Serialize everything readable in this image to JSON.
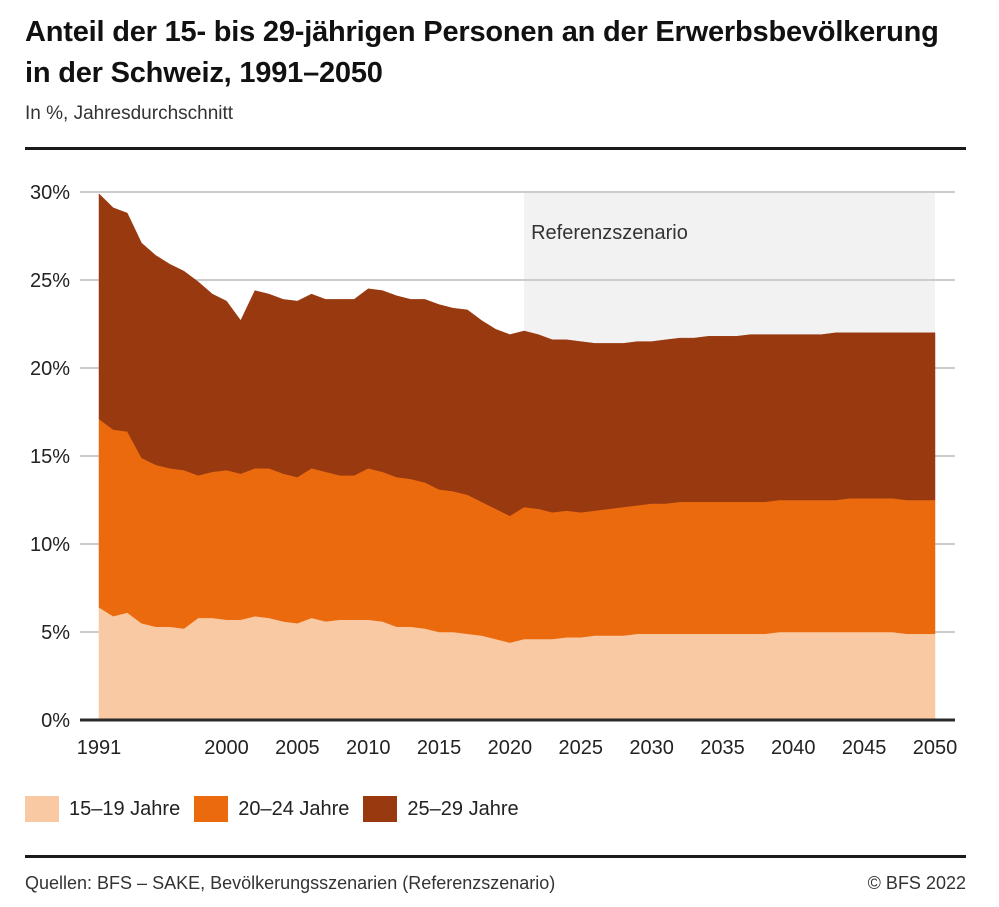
{
  "header": {
    "title": "Anteil der 15- bis 29-jährigen Personen an der Erwerbsbevölkerung in der Schweiz, 1991–2050",
    "subtitle": "In %, Jahresdurchschnitt"
  },
  "footer": {
    "source": "Quellen: BFS – SAKE, Bevölkerungsszenarien (Referenzszenario)",
    "copyright": "© BFS 2022"
  },
  "chart_data": {
    "type": "area",
    "stacked": true,
    "title": "Anteil der 15- bis 29-jährigen Personen an der Erwerbsbevölkerung in der Schweiz, 1991–2050",
    "subtitle": "In %, Jahresdurchschnitt",
    "xlabel": "",
    "ylabel": "",
    "ylim": [
      0,
      30
    ],
    "xlim": [
      1991,
      2050
    ],
    "grid": true,
    "legend_position": "bottom-left",
    "y_ticks": [
      0,
      5,
      10,
      15,
      20,
      25,
      30
    ],
    "y_tick_labels": [
      "0%",
      "5%",
      "10%",
      "15%",
      "20%",
      "25%",
      "30%"
    ],
    "x_ticks": [
      1991,
      2000,
      2005,
      2010,
      2015,
      2020,
      2025,
      2030,
      2035,
      2040,
      2045,
      2050
    ],
    "x_tick_labels": [
      "1991",
      "2000",
      "2005",
      "2010",
      "2015",
      "2020",
      "2025",
      "2030",
      "2035",
      "2040",
      "2045",
      "2050"
    ],
    "annotation": {
      "label": "Referenzszenario",
      "x_start": 2021,
      "x_end": 2050,
      "color": "#f2f2f2"
    },
    "x": [
      1991,
      1992,
      1993,
      1994,
      1995,
      1996,
      1997,
      1998,
      1999,
      2000,
      2001,
      2002,
      2003,
      2004,
      2005,
      2006,
      2007,
      2008,
      2009,
      2010,
      2011,
      2012,
      2013,
      2014,
      2015,
      2016,
      2017,
      2018,
      2019,
      2020,
      2021,
      2022,
      2023,
      2024,
      2025,
      2026,
      2027,
      2028,
      2029,
      2030,
      2031,
      2032,
      2033,
      2034,
      2035,
      2036,
      2037,
      2038,
      2039,
      2040,
      2041,
      2042,
      2043,
      2044,
      2045,
      2046,
      2047,
      2048,
      2049,
      2050
    ],
    "series": [
      {
        "name": "15–19 Jahre",
        "color": "#f9c9a3",
        "values": [
          6.4,
          5.9,
          6.1,
          5.5,
          5.3,
          5.3,
          5.2,
          5.8,
          5.8,
          5.7,
          5.7,
          5.9,
          5.8,
          5.6,
          5.5,
          5.8,
          5.6,
          5.7,
          5.7,
          5.7,
          5.6,
          5.3,
          5.3,
          5.2,
          5.0,
          5.0,
          4.9,
          4.8,
          4.6,
          4.4,
          4.6,
          4.6,
          4.6,
          4.7,
          4.7,
          4.8,
          4.8,
          4.8,
          4.9,
          4.9,
          4.9,
          4.9,
          4.9,
          4.9,
          4.9,
          4.9,
          4.9,
          4.9,
          5.0,
          5.0,
          5.0,
          5.0,
          5.0,
          5.0,
          5.0,
          5.0,
          5.0,
          4.9,
          4.9,
          4.9
        ]
      },
      {
        "name": "20–24 Jahre",
        "color": "#eb6a0d",
        "values": [
          10.7,
          10.6,
          10.3,
          9.4,
          9.2,
          9.0,
          9.0,
          8.1,
          8.3,
          8.5,
          8.3,
          8.4,
          8.5,
          8.4,
          8.3,
          8.5,
          8.5,
          8.2,
          8.2,
          8.6,
          8.5,
          8.5,
          8.4,
          8.3,
          8.1,
          8.0,
          7.9,
          7.6,
          7.4,
          7.2,
          7.5,
          7.4,
          7.2,
          7.2,
          7.1,
          7.1,
          7.2,
          7.3,
          7.3,
          7.4,
          7.4,
          7.5,
          7.5,
          7.5,
          7.5,
          7.5,
          7.5,
          7.5,
          7.5,
          7.5,
          7.5,
          7.5,
          7.5,
          7.6,
          7.6,
          7.6,
          7.6,
          7.6,
          7.6,
          7.6
        ]
      },
      {
        "name": "25–29 Jahre",
        "color": "#983910",
        "values": [
          12.8,
          12.6,
          12.4,
          12.2,
          11.9,
          11.6,
          11.3,
          11.0,
          10.1,
          9.6,
          8.7,
          10.1,
          9.9,
          9.9,
          10.0,
          9.9,
          9.8,
          10.0,
          10.0,
          10.2,
          10.3,
          10.3,
          10.2,
          10.4,
          10.5,
          10.4,
          10.5,
          10.3,
          10.2,
          10.3,
          10.0,
          9.9,
          9.8,
          9.7,
          9.7,
          9.5,
          9.4,
          9.3,
          9.3,
          9.2,
          9.3,
          9.3,
          9.3,
          9.4,
          9.4,
          9.4,
          9.5,
          9.5,
          9.4,
          9.4,
          9.4,
          9.4,
          9.5,
          9.4,
          9.4,
          9.4,
          9.4,
          9.5,
          9.5,
          9.5
        ]
      }
    ]
  }
}
